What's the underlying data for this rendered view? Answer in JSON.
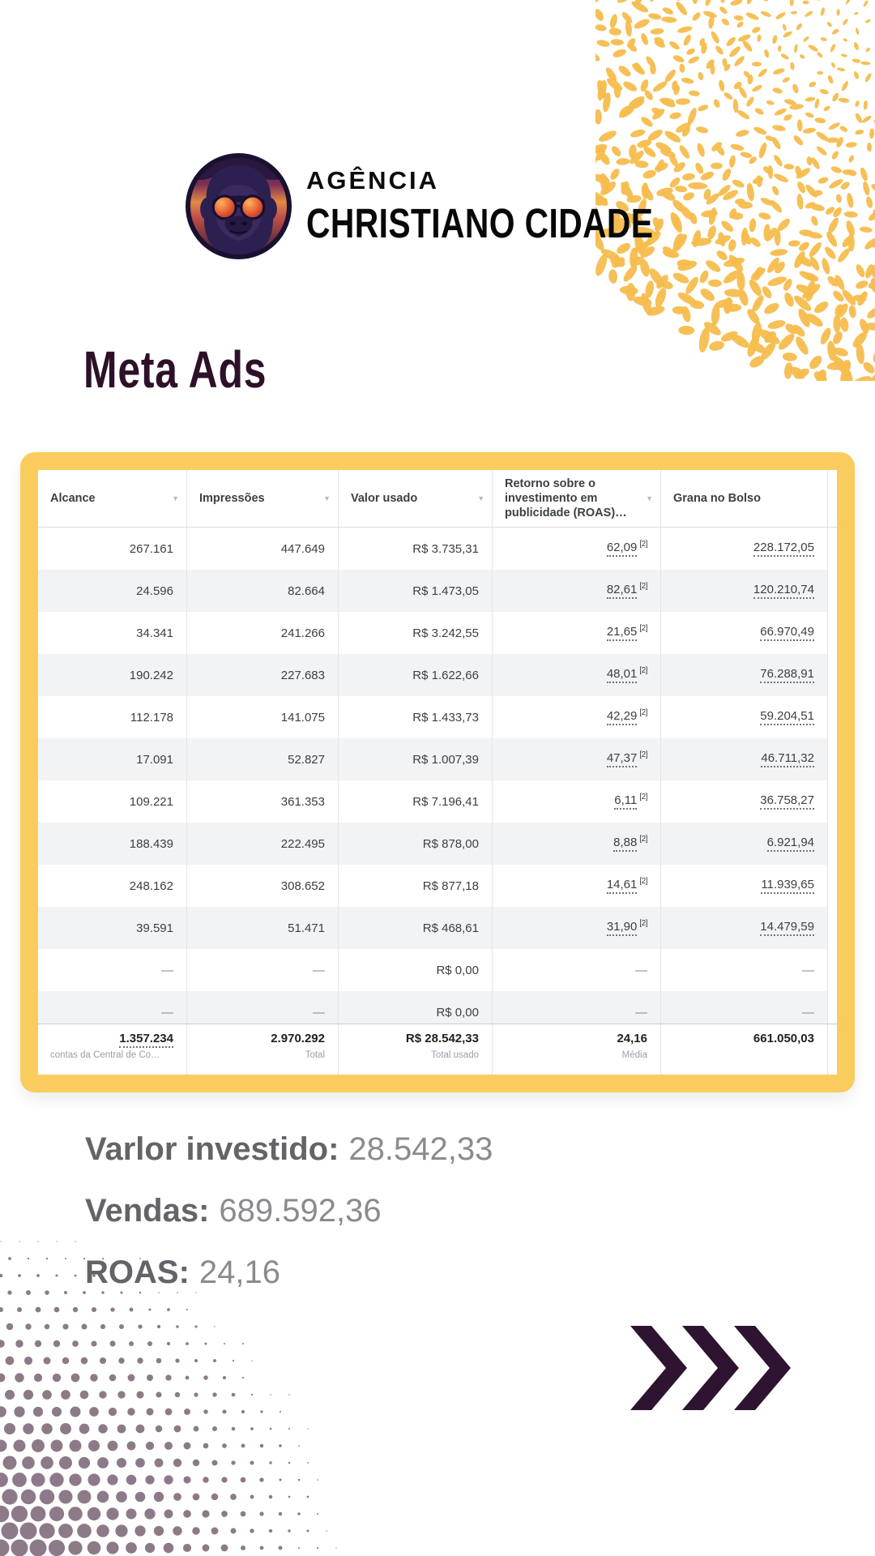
{
  "brand": {
    "agency_label": "AGÊNCIA",
    "agency_name": "CHRISTIANO CIDADE",
    "logo": "gorilla-with-sunglasses"
  },
  "page_title": "Meta Ads",
  "icons": {
    "sort_arrow": "▼"
  },
  "table": {
    "columns": [
      {
        "label": "Alcance",
        "sortable": true
      },
      {
        "label": "Impressões",
        "sortable": true
      },
      {
        "label": "Valor usado",
        "sortable": true
      },
      {
        "label": "Retorno sobre o investimento em publicidade (ROAS)…",
        "sortable": true
      },
      {
        "label": "Grana no Bolso",
        "sortable": false
      }
    ],
    "rows": [
      {
        "alcance": "267.161",
        "impressoes": "447.649",
        "valor_usado": "R$ 3.735,31",
        "roas": "62,09",
        "roas_note": "[2]",
        "grana": "228.172,05"
      },
      {
        "alcance": "24.596",
        "impressoes": "82.664",
        "valor_usado": "R$ 1.473,05",
        "roas": "82,61",
        "roas_note": "[2]",
        "grana": "120.210,74"
      },
      {
        "alcance": "34.341",
        "impressoes": "241.266",
        "valor_usado": "R$ 3.242,55",
        "roas": "21,65",
        "roas_note": "[2]",
        "grana": "66.970,49"
      },
      {
        "alcance": "190.242",
        "impressoes": "227.683",
        "valor_usado": "R$ 1.622,66",
        "roas": "48,01",
        "roas_note": "[2]",
        "grana": "76.288,91"
      },
      {
        "alcance": "112.178",
        "impressoes": "141.075",
        "valor_usado": "R$ 1.433,73",
        "roas": "42,29",
        "roas_note": "[2]",
        "grana": "59.204,51"
      },
      {
        "alcance": "17.091",
        "impressoes": "52.827",
        "valor_usado": "R$ 1.007,39",
        "roas": "47,37",
        "roas_note": "[2]",
        "grana": "46.711,32"
      },
      {
        "alcance": "109.221",
        "impressoes": "361.353",
        "valor_usado": "R$ 7.196,41",
        "roas": "6,11",
        "roas_note": "[2]",
        "grana": "36.758,27"
      },
      {
        "alcance": "188.439",
        "impressoes": "222.495",
        "valor_usado": "R$ 878,00",
        "roas": "8,88",
        "roas_note": "[2]",
        "grana": "6.921,94"
      },
      {
        "alcance": "248.162",
        "impressoes": "308.652",
        "valor_usado": "R$ 877,18",
        "roas": "14,61",
        "roas_note": "[2]",
        "grana": "11.939,65"
      },
      {
        "alcance": "39.591",
        "impressoes": "51.471",
        "valor_usado": "R$ 468,61",
        "roas": "31,90",
        "roas_note": "[2]",
        "grana": "14.479,59"
      },
      {
        "alcance": "—",
        "impressoes": "—",
        "valor_usado": "R$ 0,00",
        "roas": "—",
        "roas_note": "",
        "grana": "—"
      },
      {
        "alcance": "—",
        "impressoes": "—",
        "valor_usado": "R$ 0,00",
        "roas": "—",
        "roas_note": "",
        "grana": "—"
      }
    ],
    "footer": {
      "cells": [
        {
          "value": "1.357.234",
          "caption": "contas da Central de Co…"
        },
        {
          "value": "2.970.292",
          "caption": "Total"
        },
        {
          "value": "R$ 28.542,33",
          "caption": "Total usado"
        },
        {
          "value": "24,16",
          "caption": "Média"
        },
        {
          "value": "661.050,03",
          "caption": ""
        }
      ]
    }
  },
  "summary": {
    "lines": [
      {
        "label": "Varlor investido:",
        "value": "28.542,33"
      },
      {
        "label": "Vendas:",
        "value": "689.592,36"
      },
      {
        "label": "ROAS:",
        "value": "24,16"
      }
    ]
  },
  "colors": {
    "accent_yellow": "#FACC5E",
    "pattern_yellow": "#F5BD4E",
    "dark_purple": "#2E1430",
    "halftone_purple": "#8C7A89",
    "table_text": "#3C4043",
    "muted_text": "#9AA0A6",
    "summary_label": "#646468",
    "summary_value": "#8B8B8F"
  }
}
